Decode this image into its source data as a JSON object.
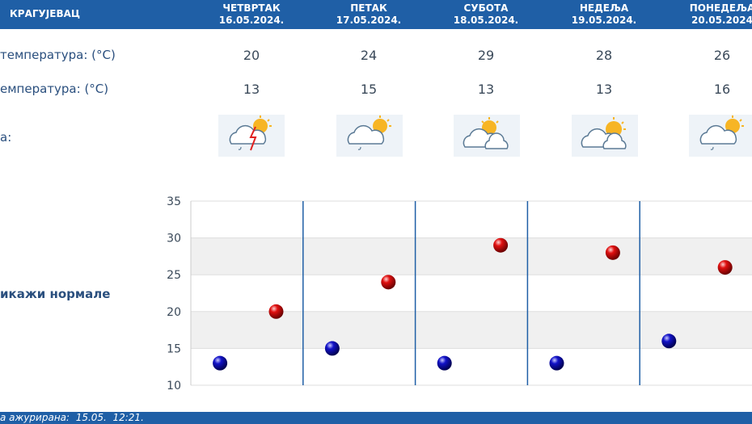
{
  "header": {
    "city": "КРАГУЈЕВАЦ",
    "days": [
      {
        "name": "ЧЕТВРТАК",
        "date": "16.05.2024."
      },
      {
        "name": "ПЕТАК",
        "date": "17.05.2024."
      },
      {
        "name": "СУБОТА",
        "date": "18.05.2024."
      },
      {
        "name": "НЕДЕЉА",
        "date": "19.05.2024."
      },
      {
        "name": "ПОНЕДЕЉА",
        "date": "20.05.2024"
      }
    ]
  },
  "rows": {
    "max_label": "температура: (°C)",
    "min_label": "емпература: (°C)",
    "icon_label": "a:",
    "max_values": [
      "20",
      "24",
      "29",
      "28",
      "26"
    ],
    "min_values": [
      "13",
      "15",
      "13",
      "13",
      "16"
    ]
  },
  "icons": [
    "sun-cloud-rain-thunder-icon",
    "sun-cloud-rain-icon",
    "sun-cloud-icon",
    "sun-cloud-icon",
    "sun-cloud-rain-icon"
  ],
  "normals_link": "икажи нормале",
  "footer": {
    "updated": "а ажурирана:  15.05.  12:21."
  },
  "colors": {
    "header": "#1f5fa6",
    "max_point": "#cc0000",
    "min_point": "#0a0aa8",
    "grid_band": "#f0f0f0"
  },
  "chart_data": {
    "type": "scatter",
    "title": "",
    "xlabel": "",
    "ylabel": "",
    "ylim": [
      10,
      35
    ],
    "yticks": [
      "35",
      "30",
      "25",
      "20",
      "15",
      "10"
    ],
    "categories": [
      "16.05.2024.",
      "17.05.2024.",
      "18.05.2024.",
      "19.05.2024.",
      "20.05.2024"
    ],
    "series": [
      {
        "values": [
          20,
          24,
          29,
          28,
          26
        ]
      },
      {
        "values": [
          13,
          15,
          13,
          13,
          16
        ]
      }
    ]
  }
}
